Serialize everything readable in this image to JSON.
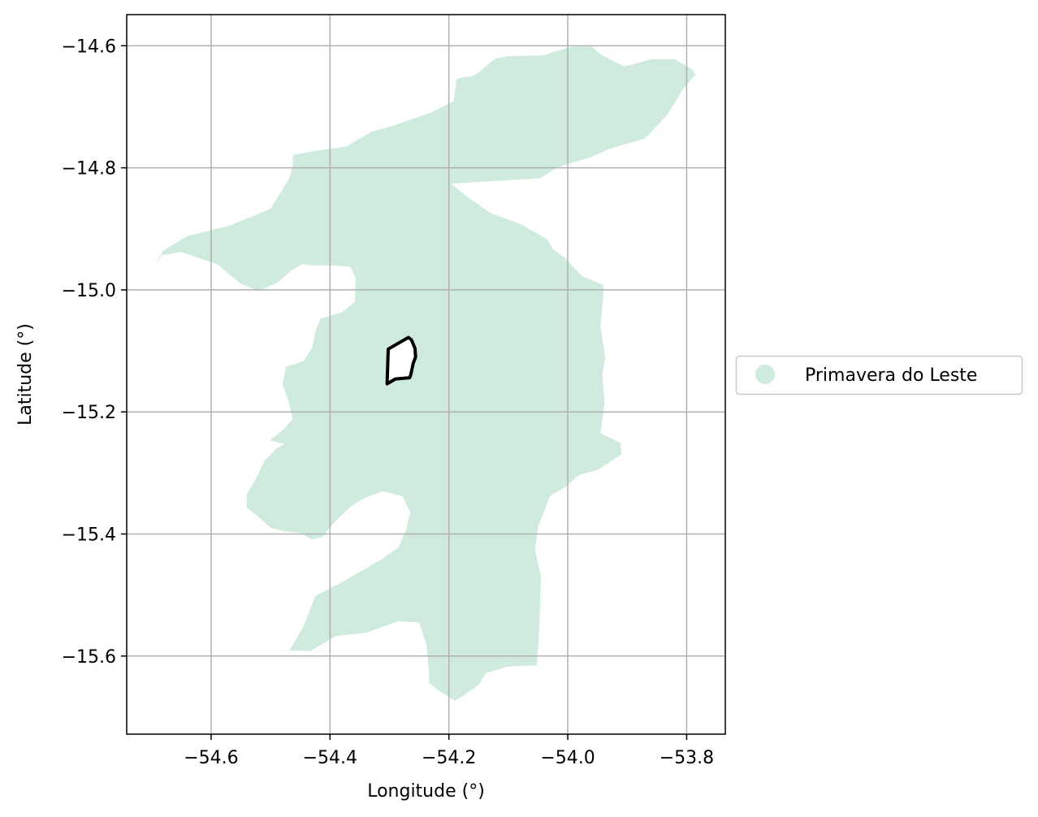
{
  "chart_data": {
    "type": "map",
    "xlabel": "Longitude (°)",
    "ylabel": "Latitude (°)",
    "xlim": [
      -54.742,
      -53.735
    ],
    "ylim": [
      -15.728,
      -14.549
    ],
    "xticks": [
      -54.6,
      -54.4,
      -54.2,
      -54.0,
      -53.8
    ],
    "xtick_labels": [
      "−54.6",
      "−54.4",
      "−54.2",
      "−54.0",
      "−53.8"
    ],
    "yticks": [
      -14.6,
      -14.8,
      -15.0,
      -15.2,
      -15.4,
      -15.6
    ],
    "ytick_labels": [
      "−14.6",
      "−14.8",
      "−15.0",
      "−15.2",
      "−15.4",
      "−15.6"
    ],
    "grid": true,
    "legend": {
      "placement": "right",
      "entries": [
        {
          "label": "Primavera do Leste",
          "color": "#cfebdd"
        }
      ]
    },
    "region": {
      "name": "Primavera do Leste",
      "color": "#cfebdd",
      "outline": [
        [
          -54.462,
          -14.779
        ],
        [
          -54.428,
          -14.773
        ],
        [
          -54.372,
          -14.765
        ],
        [
          -54.33,
          -14.741
        ],
        [
          -54.29,
          -14.73
        ],
        [
          -54.232,
          -14.71
        ],
        [
          -54.192,
          -14.691
        ],
        [
          -54.187,
          -14.654
        ],
        [
          -54.157,
          -14.649
        ],
        [
          -54.122,
          -14.621
        ],
        [
          -54.1,
          -14.617
        ],
        [
          -54.042,
          -14.616
        ],
        [
          -53.995,
          -14.602
        ],
        [
          -53.96,
          -14.601
        ],
        [
          -53.945,
          -14.614
        ],
        [
          -53.905,
          -14.634
        ],
        [
          -53.858,
          -14.622
        ],
        [
          -53.82,
          -14.622
        ],
        [
          -53.79,
          -14.639
        ],
        [
          -53.785,
          -14.647
        ],
        [
          -53.806,
          -14.671
        ],
        [
          -53.831,
          -14.711
        ],
        [
          -53.87,
          -14.752
        ],
        [
          -53.93,
          -14.769
        ],
        [
          -53.962,
          -14.783
        ],
        [
          -54.017,
          -14.799
        ],
        [
          -54.046,
          -14.817
        ],
        [
          -54.146,
          -14.823
        ],
        [
          -54.196,
          -14.826
        ],
        [
          -54.17,
          -14.847
        ],
        [
          -54.13,
          -14.874
        ],
        [
          -54.078,
          -14.893
        ],
        [
          -54.035,
          -14.917
        ],
        [
          -54.025,
          -14.933
        ],
        [
          -54.005,
          -14.948
        ],
        [
          -53.975,
          -14.978
        ],
        [
          -53.94,
          -14.992
        ],
        [
          -53.941,
          -15.02
        ],
        [
          -53.945,
          -15.06
        ],
        [
          -53.937,
          -15.11
        ],
        [
          -53.942,
          -15.14
        ],
        [
          -53.938,
          -15.185
        ],
        [
          -53.945,
          -15.235
        ],
        [
          -53.911,
          -15.251
        ],
        [
          -53.91,
          -15.27
        ],
        [
          -53.95,
          -15.295
        ],
        [
          -53.981,
          -15.303
        ],
        [
          -54.003,
          -15.322
        ],
        [
          -54.03,
          -15.338
        ],
        [
          -54.05,
          -15.389
        ],
        [
          -54.055,
          -15.426
        ],
        [
          -54.045,
          -15.47
        ],
        [
          -54.048,
          -15.555
        ],
        [
          -54.052,
          -15.615
        ],
        [
          -54.1,
          -15.617
        ],
        [
          -54.138,
          -15.628
        ],
        [
          -54.15,
          -15.647
        ],
        [
          -54.176,
          -15.665
        ],
        [
          -54.19,
          -15.673
        ],
        [
          -54.21,
          -15.661
        ],
        [
          -54.233,
          -15.645
        ],
        [
          -54.234,
          -15.62
        ],
        [
          -54.238,
          -15.58
        ],
        [
          -54.25,
          -15.545
        ],
        [
          -54.285,
          -15.543
        ],
        [
          -54.34,
          -15.562
        ],
        [
          -54.39,
          -15.567
        ],
        [
          -54.433,
          -15.592
        ],
        [
          -54.468,
          -15.591
        ],
        [
          -54.445,
          -15.552
        ],
        [
          -54.425,
          -15.502
        ],
        [
          -54.378,
          -15.478
        ],
        [
          -54.314,
          -15.442
        ],
        [
          -54.285,
          -15.422
        ],
        [
          -54.272,
          -15.393
        ],
        [
          -54.265,
          -15.365
        ],
        [
          -54.278,
          -15.338
        ],
        [
          -54.31,
          -15.33
        ],
        [
          -54.34,
          -15.34
        ],
        [
          -54.365,
          -15.355
        ],
        [
          -54.392,
          -15.38
        ],
        [
          -54.413,
          -15.405
        ],
        [
          -54.43,
          -15.409
        ],
        [
          -54.45,
          -15.398
        ],
        [
          -54.475,
          -15.396
        ],
        [
          -54.5,
          -15.39
        ],
        [
          -54.525,
          -15.368
        ],
        [
          -54.54,
          -15.357
        ],
        [
          -54.54,
          -15.335
        ],
        [
          -54.525,
          -15.31
        ],
        [
          -54.51,
          -15.28
        ],
        [
          -54.49,
          -15.26
        ],
        [
          -54.476,
          -15.252
        ],
        [
          -54.502,
          -15.247
        ],
        [
          -54.48,
          -15.23
        ],
        [
          -54.463,
          -15.212
        ],
        [
          -54.47,
          -15.182
        ],
        [
          -54.48,
          -15.155
        ],
        [
          -54.474,
          -15.126
        ],
        [
          -54.445,
          -15.117
        ],
        [
          -54.43,
          -15.095
        ],
        [
          -54.425,
          -15.07
        ],
        [
          -54.416,
          -15.047
        ],
        [
          -54.38,
          -15.037
        ],
        [
          -54.358,
          -15.019
        ],
        [
          -54.357,
          -14.98
        ],
        [
          -54.366,
          -14.962
        ],
        [
          -54.395,
          -14.96
        ],
        [
          -54.425,
          -14.96
        ],
        [
          -54.447,
          -14.958
        ],
        [
          -54.465,
          -14.968
        ],
        [
          -54.488,
          -14.988
        ],
        [
          -54.52,
          -15.002
        ],
        [
          -54.55,
          -14.99
        ],
        [
          -54.59,
          -14.958
        ],
        [
          -54.65,
          -14.938
        ],
        [
          -54.683,
          -14.943
        ],
        [
          -54.695,
          -14.958
        ],
        [
          -54.68,
          -14.935
        ],
        [
          -54.64,
          -14.912
        ],
        [
          -54.57,
          -14.895
        ],
        [
          -54.522,
          -14.876
        ],
        [
          -54.5,
          -14.867
        ],
        [
          -54.482,
          -14.839
        ],
        [
          -54.468,
          -14.816
        ],
        [
          -54.463,
          -14.797
        ]
      ],
      "holes": [
        [
          [
            -54.302,
            -15.097
          ],
          [
            -54.268,
            -15.078
          ],
          [
            -54.263,
            -15.082
          ],
          [
            -54.257,
            -15.096
          ],
          [
            -54.256,
            -15.11
          ],
          [
            -54.26,
            -15.12
          ],
          [
            -54.264,
            -15.139
          ],
          [
            -54.266,
            -15.144
          ],
          [
            -54.29,
            -15.146
          ],
          [
            -54.304,
            -15.154
          ]
        ]
      ]
    }
  }
}
